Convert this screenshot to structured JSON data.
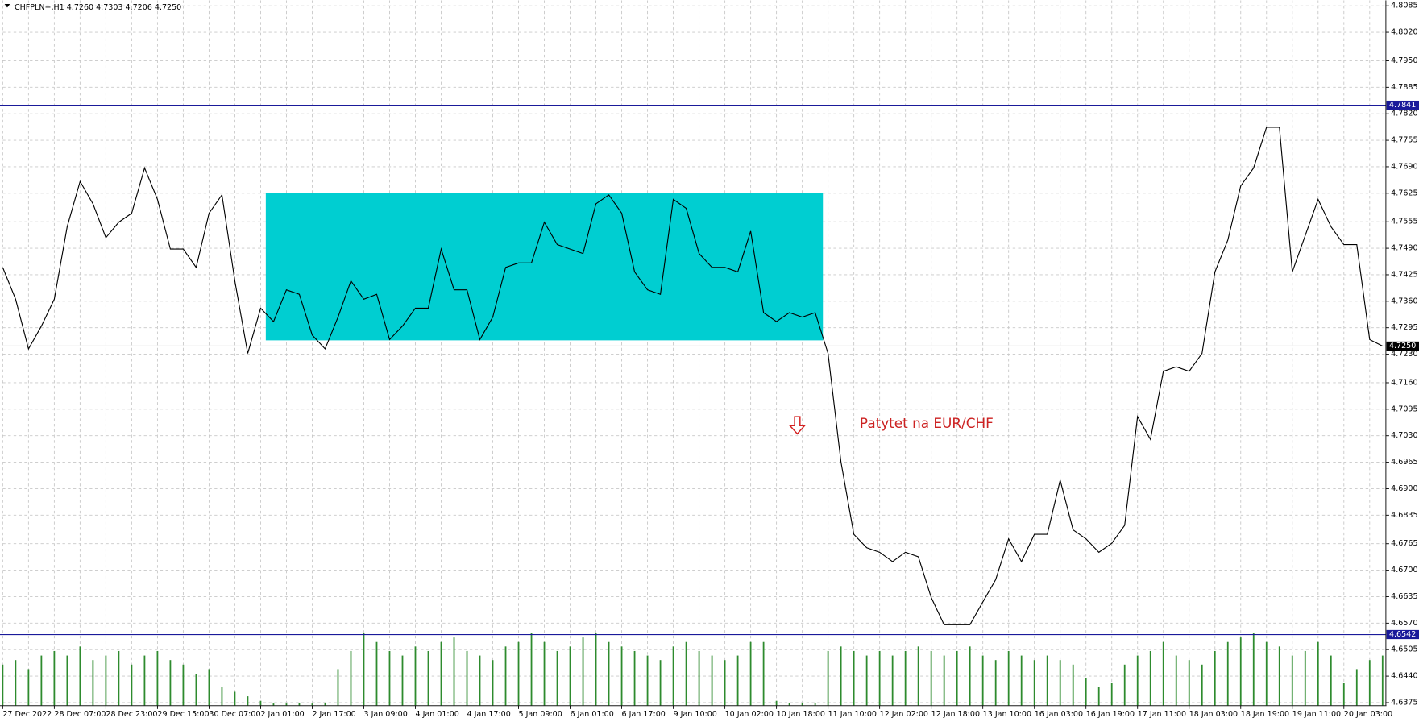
{
  "chart_data": {
    "type": "line",
    "header": "CHFPLN+,H1  4.7260 4.7303 4.7206 4.7250",
    "annotation": "Patytet na EUR/CHF",
    "color": "#000000",
    "categories": [
      "27 Dec 2022",
      null,
      null,
      null,
      "28 Dec 07:00",
      null,
      null,
      null,
      "28 Dec 23:00",
      null,
      null,
      null,
      "29 Dec 15:00",
      null,
      null,
      null,
      "30 Dec 07:00",
      null,
      null,
      null,
      "2 Jan 01:00",
      null,
      null,
      null,
      "2 Jan 17:00",
      null,
      null,
      null,
      "3 Jan 09:00",
      null,
      null,
      null,
      "4 Jan 01:00",
      null,
      null,
      null,
      "4 Jan 17:00",
      null,
      null,
      null,
      "5 Jan 09:00",
      null,
      null,
      null,
      "6 Jan 01:00",
      null,
      null,
      null,
      "6 Jan 17:00",
      null,
      null,
      null,
      "9 Jan 10:00",
      null,
      null,
      null,
      "10 Jan 02:00",
      null,
      null,
      null,
      "10 Jan 18:00",
      null,
      null,
      null,
      "11 Jan 10:00",
      null,
      null,
      null,
      "12 Jan 02:00",
      null,
      null,
      null,
      "12 Jan 18:00",
      null,
      null,
      null,
      "13 Jan 10:00",
      null,
      null,
      null,
      "16 Jan 03:00",
      null,
      null,
      null,
      "16 Jan 19:00",
      null,
      null,
      null,
      "17 Jan 11:00",
      null,
      null,
      null,
      "18 Jan 03:00",
      null,
      null,
      null,
      "18 Jan 19:00",
      null,
      null,
      null,
      "19 Jan 11:00",
      null,
      null,
      null,
      "20 Jan 03:00",
      null,
      null,
      null
    ],
    "values": [
      4.7443,
      4.7365,
      4.7243,
      4.7299,
      4.7365,
      4.7543,
      4.7654,
      4.7599,
      4.7516,
      4.7554,
      4.7576,
      4.7687,
      4.761,
      4.7488,
      4.7488,
      4.7443,
      4.7576,
      4.7621,
      4.741,
      4.7232,
      4.7343,
      4.731,
      4.7388,
      4.7377,
      4.7277,
      4.7243,
      4.7321,
      4.741,
      4.7365,
      4.7377,
      4.7266,
      4.7299,
      4.7343,
      4.7343,
      4.7488,
      4.7388,
      4.7388,
      4.7266,
      4.7321,
      4.7443,
      4.7454,
      4.7454,
      4.7554,
      4.7499,
      4.7488,
      4.7477,
      4.7599,
      4.7621,
      4.7576,
      4.7432,
      4.7388,
      4.7377,
      4.761,
      4.7588,
      4.7477,
      4.7443,
      4.7443,
      4.7432,
      4.7532,
      4.7332,
      4.731,
      4.7332,
      4.7321,
      4.7332,
      4.7232,
      4.6966,
      4.6788,
      4.6755,
      4.6744,
      4.6721,
      4.6744,
      4.6733,
      4.6633,
      4.6566,
      4.6566,
      4.6566,
      4.6622,
      4.6677,
      4.6777,
      4.6721,
      4.6788,
      4.6788,
      4.6921,
      4.6799,
      4.6777,
      4.6744,
      4.6766,
      4.681,
      4.7077,
      4.7021,
      4.7188,
      4.7199,
      4.7188,
      4.7232,
      4.7432,
      4.751,
      4.7643,
      4.7687,
      4.7787,
      4.7787,
      4.7432,
      4.7521,
      4.761,
      4.7543,
      4.7499,
      4.7499,
      4.7266,
      4.725
    ],
    "volume": {
      "color": "#2e8b2e",
      "vlim": [
        0,
        100
      ],
      "values": [
        45,
        50,
        40,
        55,
        60,
        55,
        65,
        50,
        55,
        60,
        45,
        55,
        60,
        50,
        45,
        35,
        40,
        20,
        15,
        10,
        5,
        2,
        2,
        3,
        2,
        3,
        40,
        60,
        80,
        70,
        60,
        55,
        65,
        60,
        70,
        75,
        60,
        55,
        50,
        65,
        70,
        80,
        70,
        60,
        65,
        75,
        80,
        70,
        65,
        60,
        55,
        50,
        65,
        70,
        60,
        55,
        50,
        55,
        70,
        70,
        5,
        3,
        3,
        3,
        60,
        65,
        60,
        55,
        60,
        55,
        60,
        65,
        60,
        55,
        60,
        65,
        55,
        50,
        60,
        55,
        50,
        55,
        50,
        45,
        30,
        20,
        25,
        45,
        55,
        60,
        70,
        55,
        50,
        45,
        60,
        70,
        75,
        80,
        70,
        65,
        55,
        60,
        70,
        55,
        25,
        40,
        50,
        55
      ]
    },
    "zone": {
      "color": "#00ced1",
      "xlim": [
        20.4,
        63.6
      ],
      "ylim": [
        4.7264,
        4.7626
      ]
    },
    "levels": [
      4.7841,
      4.6542
    ],
    "level_color": "#1a1a9a",
    "last_price": {
      "value": 4.725,
      "label": "4.7250"
    },
    "ylim": [
      4.6375,
      4.8085
    ],
    "yticks": [
      4.8085,
      {
        "value": 4.802,
        "label": "4.8020"
      },
      {
        "value": 4.795,
        "label": "4.7950"
      },
      4.7885,
      {
        "value": 4.782,
        "label": "4.7820"
      },
      4.7755,
      {
        "value": 4.769,
        "label": "4.7690"
      },
      4.7625,
      4.7555,
      {
        "value": 4.749,
        "label": "4.7490"
      },
      4.7425,
      {
        "value": 4.736,
        "label": "4.7360"
      },
      4.7295,
      {
        "value": 4.723,
        "label": "4.7230"
      },
      {
        "value": 4.716,
        "label": "4.7160"
      },
      4.7095,
      {
        "value": 4.703,
        "label": "4.7030"
      },
      4.6965,
      {
        "value": 4.69,
        "label": "4.6900"
      },
      4.6835,
      4.6765,
      {
        "value": 4.67,
        "label": "4.6700"
      },
      4.6635,
      {
        "value": 4.657,
        "label": "4.6570"
      },
      4.6505,
      {
        "value": 4.644,
        "label": "4.6440"
      },
      4.6375
    ],
    "grid": true
  }
}
